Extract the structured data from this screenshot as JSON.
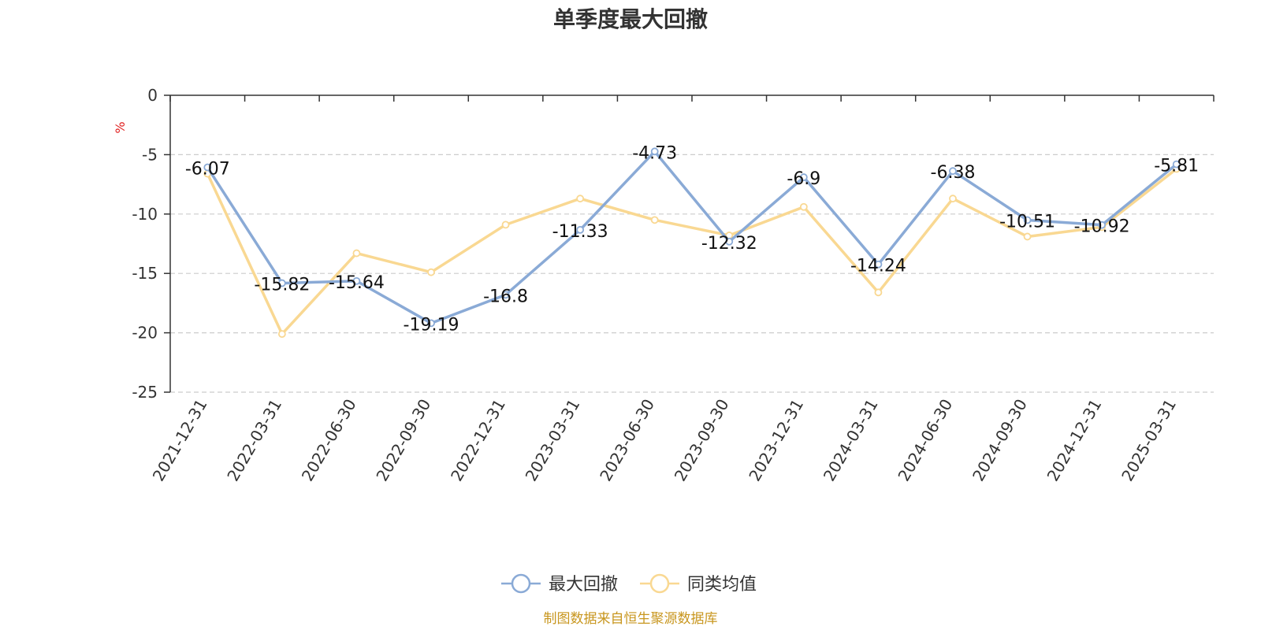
{
  "chart_data": {
    "type": "line",
    "title": "单季度最大回撤",
    "ylabel": "%",
    "ylim": [
      -25,
      0
    ],
    "yticks": [
      0,
      -5,
      -10,
      -15,
      -20,
      -25
    ],
    "grid": true,
    "legend_position": "bottom",
    "categories": [
      "2021-12-31",
      "2022-03-31",
      "2022-06-30",
      "2022-09-30",
      "2022-12-31",
      "2023-03-31",
      "2023-06-30",
      "2023-09-30",
      "2023-12-31",
      "2024-03-31",
      "2024-06-30",
      "2024-09-30",
      "2024-12-31",
      "2025-03-31"
    ],
    "series": [
      {
        "name": "最大回撤",
        "color": "#8aaad6",
        "show_labels": true,
        "values": [
          -6.07,
          -15.82,
          -15.64,
          -19.19,
          -16.8,
          -11.33,
          -4.73,
          -12.32,
          -6.9,
          -14.24,
          -6.38,
          -10.51,
          -10.92,
          -5.81
        ]
      },
      {
        "name": "同类均值",
        "color": "#f9d892",
        "show_labels": false,
        "values": [
          -6.6,
          -20.1,
          -13.3,
          -14.9,
          -10.9,
          -8.7,
          -10.5,
          -11.8,
          -9.4,
          -16.6,
          -8.7,
          -11.9,
          -11.1,
          -6.2
        ]
      }
    ],
    "source": "制图数据来自恒生聚源数据库"
  }
}
